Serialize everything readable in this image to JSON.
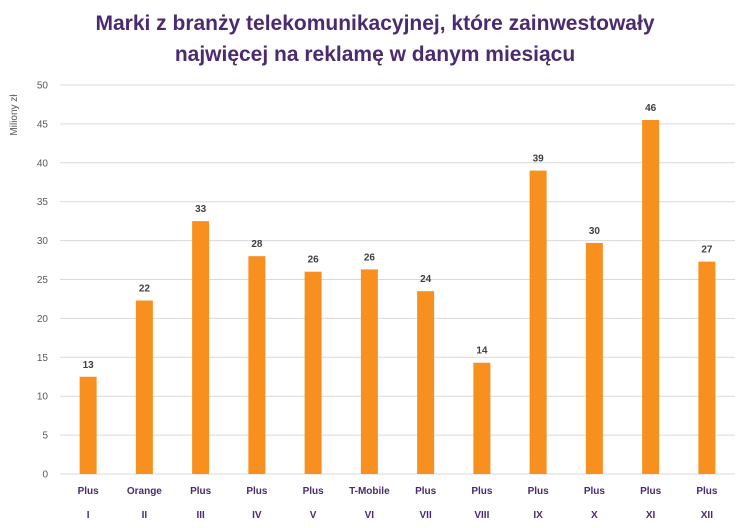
{
  "chart_data": {
    "type": "bar",
    "title_line1": "Marki z branży telekomunikacyjnej, które zainwestowały",
    "title_line2": "najwięcej na reklamę w danym miesiącu",
    "ylabel": "Miliony zł",
    "ylim": [
      0,
      50
    ],
    "yticks": [
      0,
      5,
      10,
      15,
      20,
      25,
      30,
      35,
      40,
      45,
      50
    ],
    "grid": true,
    "categories": [
      "I",
      "II",
      "III",
      "IV",
      "V",
      "VI",
      "VII",
      "VIII",
      "IX",
      "X",
      "XI",
      "XII"
    ],
    "brands": [
      "Plus",
      "Orange",
      "Plus",
      "Plus",
      "Plus",
      "T-Mobile",
      "Plus",
      "Plus",
      "Plus",
      "Plus",
      "Plus",
      "Plus"
    ],
    "values": [
      12.5,
      22.3,
      32.5,
      28,
      26,
      26.3,
      23.5,
      14.3,
      39,
      29.7,
      45.5,
      27.3
    ],
    "value_labels": [
      "13",
      "22",
      "33",
      "28",
      "26",
      "26",
      "24",
      "14",
      "39",
      "30",
      "46",
      "27"
    ]
  },
  "colors": {
    "bar": "#F7901E",
    "title": "#4B2A6F",
    "label": "#404040",
    "axis_text": "#595959",
    "grid": "#D9D9D9"
  }
}
